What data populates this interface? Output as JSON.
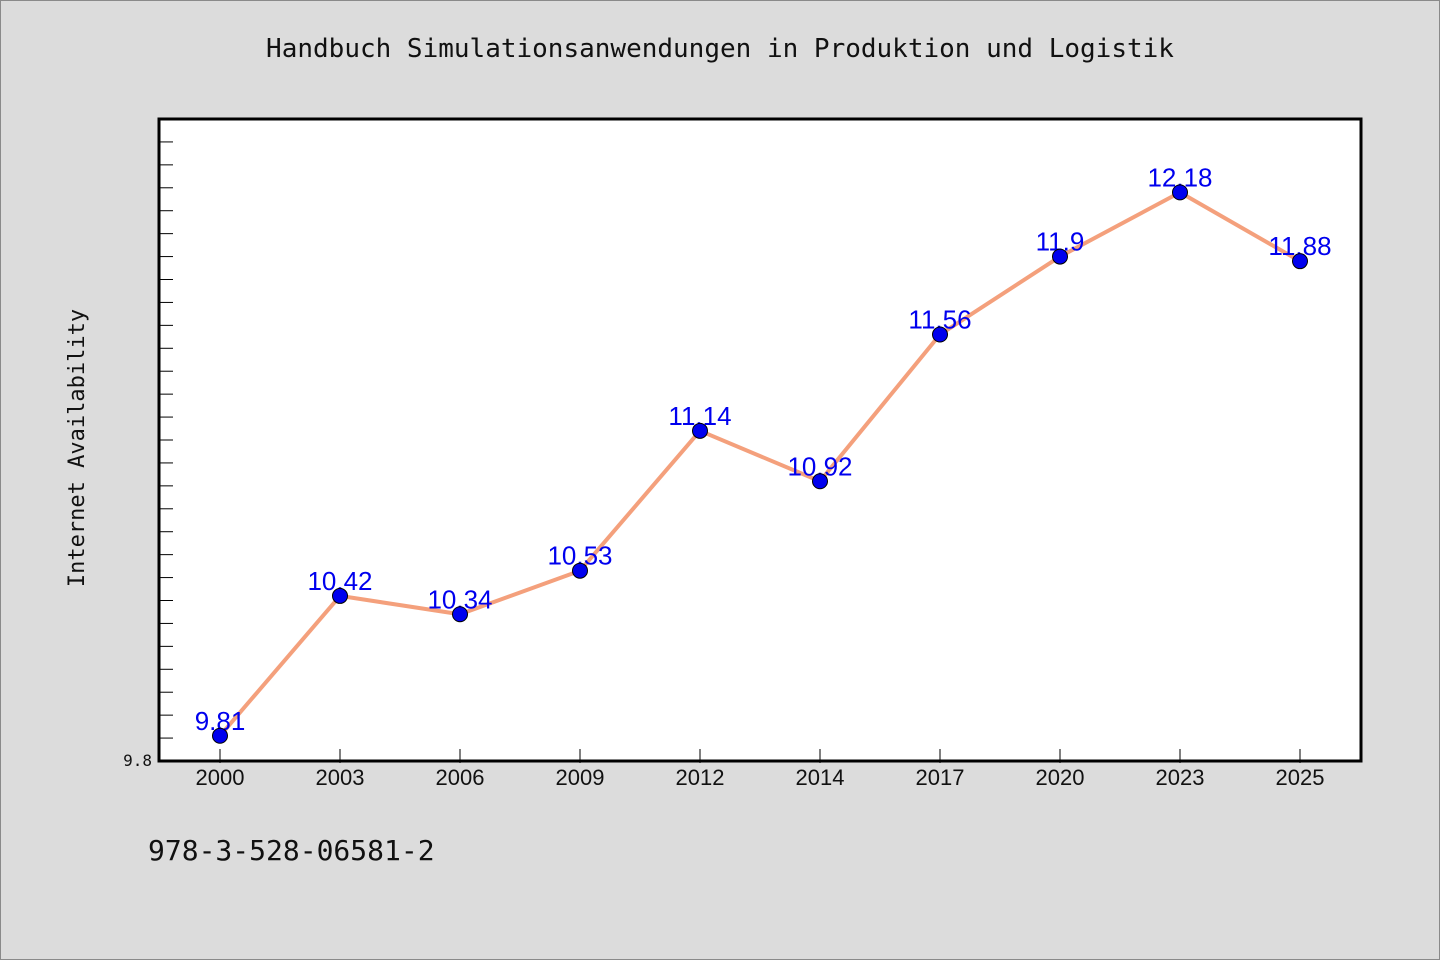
{
  "title": "Handbuch Simulationsanwendungen in Produktion und Logistik",
  "footer_code": "978-3-528-06581-2",
  "chart_data": {
    "type": "line",
    "title": "Handbuch Simulationsanwendungen in Produktion und Logistik",
    "xlabel": "",
    "ylabel": "Internet Availability",
    "categories": [
      "2000",
      "2003",
      "2006",
      "2009",
      "2012",
      "2014",
      "2017",
      "2020",
      "2023",
      "2025"
    ],
    "series": [
      {
        "values": [
          9.81,
          10.42,
          10.34,
          10.53,
          11.14,
          10.92,
          11.56,
          11.9,
          12.18,
          11.88
        ]
      }
    ],
    "data_labels": [
      "9.81",
      "10.42",
      "10.34",
      "10.53",
      "11.14",
      "10.92",
      "11.56",
      "11.9",
      "12.18",
      "11.88"
    ],
    "y_tick_label": "9.8",
    "ylim": [
      9.7,
      12.5
    ],
    "grid": false,
    "colors": {
      "line": "#f4a07c",
      "marker": "#0000ee",
      "label": "#0000ee",
      "plot_background": "#ffffff",
      "page_background": "#dcdcdc"
    }
  }
}
